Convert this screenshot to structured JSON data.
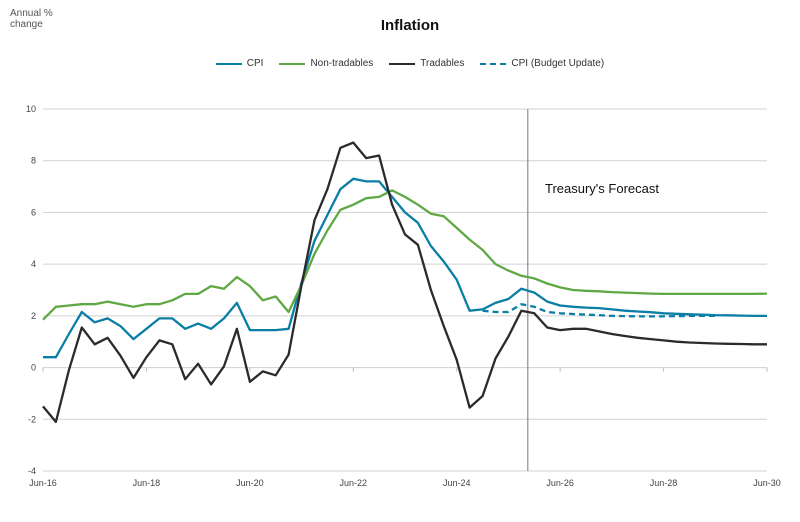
{
  "chart_data": {
    "type": "line",
    "title": "Inflation",
    "ylabel": "Annual % change",
    "xlabel": "",
    "ylim": [
      -4,
      10
    ],
    "yticks": [
      "-4",
      "-2",
      "0",
      "2",
      "4",
      "6",
      "8",
      "10"
    ],
    "xtick_labels": [
      "Jun-16",
      "Jun-18",
      "Jun-20",
      "Jun-22",
      "Jun-24",
      "Jun-26",
      "Jun-28",
      "Jun-30"
    ],
    "x_frequency": "quarterly, Jun-16 to Jun-30",
    "grid": true,
    "legend_position": "top-center",
    "annotation": "Treasury's Forecast",
    "forecast_start_index": 37.5,
    "series": [
      {
        "name": "CPI",
        "color": "#0b7ea6",
        "dash": false,
        "values": [
          0.4,
          0.4,
          1.3,
          2.15,
          1.75,
          1.9,
          1.6,
          1.1,
          1.5,
          1.9,
          1.9,
          1.5,
          1.7,
          1.5,
          1.9,
          2.5,
          1.45,
          1.45,
          1.45,
          1.5,
          3.3,
          4.9,
          5.9,
          6.9,
          7.3,
          7.2,
          7.2,
          6.6,
          6.0,
          5.6,
          4.7,
          4.1,
          3.4,
          2.2,
          2.25,
          2.5,
          2.65,
          3.05,
          2.9,
          2.55,
          2.4,
          2.35,
          2.32,
          2.3,
          2.25,
          2.2,
          2.17,
          2.14,
          2.1,
          2.08,
          2.06,
          2.05,
          2.03,
          2.02,
          2.01,
          2.0,
          2.0
        ]
      },
      {
        "name": "Non-tradables",
        "color": "#5fa844",
        "dash": false,
        "values": [
          1.85,
          2.35,
          2.4,
          2.45,
          2.45,
          2.55,
          2.45,
          2.35,
          2.45,
          2.45,
          2.6,
          2.85,
          2.85,
          3.15,
          3.05,
          3.5,
          3.15,
          2.6,
          2.75,
          2.15,
          3.2,
          4.4,
          5.3,
          6.1,
          6.3,
          6.55,
          6.6,
          6.85,
          6.6,
          6.3,
          5.95,
          5.85,
          5.4,
          4.95,
          4.55,
          4.0,
          3.75,
          3.55,
          3.45,
          3.25,
          3.1,
          3.0,
          2.97,
          2.95,
          2.92,
          2.9,
          2.88,
          2.86,
          2.85,
          2.85,
          2.85,
          2.85,
          2.85,
          2.85,
          2.85,
          2.85,
          2.86
        ]
      },
      {
        "name": "Tradables",
        "color": "#2b2b2b",
        "dash": false,
        "values": [
          -1.5,
          -2.1,
          -0.1,
          1.55,
          0.9,
          1.15,
          0.45,
          -0.4,
          0.4,
          1.05,
          0.9,
          -0.45,
          0.15,
          -0.65,
          0.05,
          1.5,
          -0.55,
          -0.15,
          -0.3,
          0.5,
          3.2,
          5.7,
          6.9,
          8.5,
          8.7,
          8.1,
          8.2,
          6.3,
          5.15,
          4.75,
          3.0,
          1.6,
          0.3,
          -1.55,
          -1.1,
          0.35,
          1.2,
          2.2,
          2.1,
          1.55,
          1.45,
          1.5,
          1.5,
          1.4,
          1.3,
          1.22,
          1.15,
          1.1,
          1.05,
          1.0,
          0.97,
          0.95,
          0.93,
          0.92,
          0.91,
          0.9,
          0.9
        ]
      },
      {
        "name": "CPI (Budget Update)",
        "color": "#0b7ea6",
        "dash": true,
        "values": [
          null,
          null,
          null,
          null,
          null,
          null,
          null,
          null,
          null,
          null,
          null,
          null,
          null,
          null,
          null,
          null,
          null,
          null,
          null,
          null,
          null,
          null,
          null,
          null,
          null,
          null,
          null,
          null,
          null,
          null,
          null,
          null,
          null,
          null,
          2.2,
          2.15,
          2.15,
          2.45,
          2.35,
          2.15,
          2.1,
          2.07,
          2.05,
          2.03,
          2.0,
          1.99,
          1.98,
          1.98,
          1.98,
          1.99,
          2.0,
          2.0,
          2.0
        ]
      }
    ]
  }
}
